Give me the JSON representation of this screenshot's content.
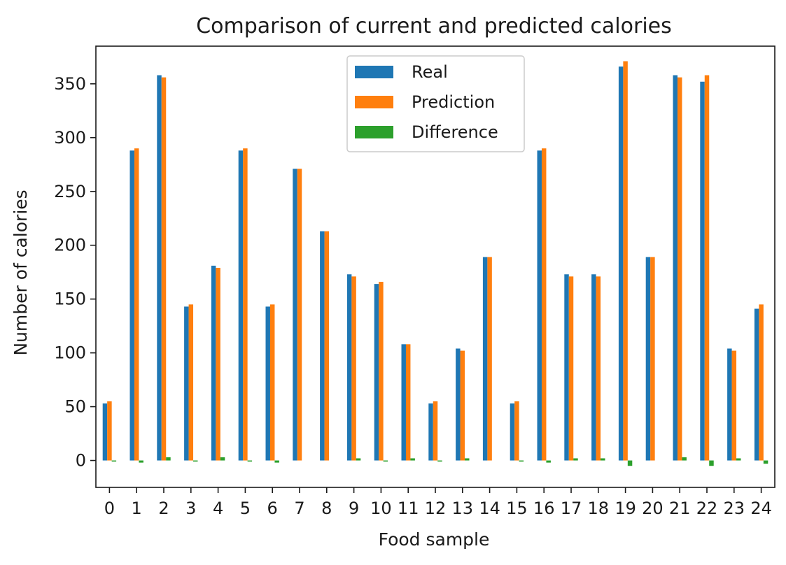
{
  "chart_data": {
    "type": "bar",
    "title": "Comparison of current and predicted calories",
    "xlabel": "Food sample",
    "ylabel": "Number of calories",
    "categories": [
      "0",
      "1",
      "2",
      "3",
      "4",
      "5",
      "6",
      "7",
      "8",
      "9",
      "10",
      "11",
      "12",
      "13",
      "14",
      "15",
      "16",
      "17",
      "18",
      "19",
      "20",
      "21",
      "22",
      "23",
      "24"
    ],
    "series": [
      {
        "name": "Real",
        "color": "#1f77b4",
        "values": [
          53,
          288,
          358,
          143,
          181,
          288,
          143,
          271,
          213,
          173,
          164,
          108,
          53,
          104,
          189,
          53,
          288,
          173,
          173,
          366,
          189,
          358,
          352,
          104,
          141
        ]
      },
      {
        "name": "Prediction",
        "color": "#ff7f0e",
        "values": [
          55,
          290,
          356,
          145,
          179,
          290,
          145,
          271,
          213,
          171,
          166,
          108,
          55,
          102,
          189,
          55,
          290,
          171,
          171,
          371,
          189,
          356,
          358,
          102,
          145
        ]
      },
      {
        "name": "Difference",
        "color": "#2ca02c",
        "values": [
          -1,
          -2,
          3,
          -1,
          3,
          -1,
          -2,
          0,
          0,
          2,
          -1,
          2,
          -1,
          2,
          0,
          -1,
          -2,
          2,
          2,
          -5,
          0,
          3,
          -5,
          2,
          -3
        ]
      }
    ],
    "ylim": [
      -25,
      385
    ],
    "yticks": [
      0,
      50,
      100,
      150,
      200,
      250,
      300,
      350
    ],
    "grid": false,
    "legend_position": "upper-center"
  }
}
